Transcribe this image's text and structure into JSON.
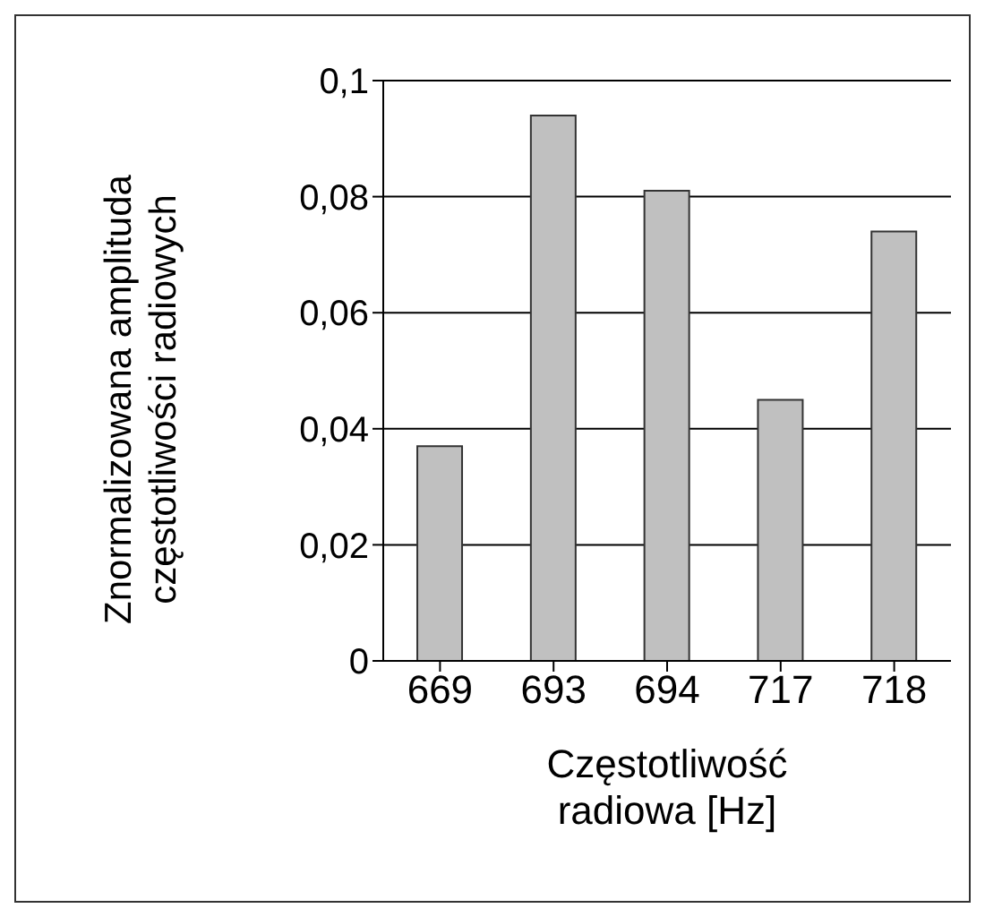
{
  "chart_data": {
    "type": "bar",
    "xlabel": "Częstotliwość\nradiowa [Hz]",
    "ylabel": "Znormalizowana amplituda\nczęstotliwości radiowych",
    "categories": [
      "669",
      "693",
      "694",
      "717",
      "718"
    ],
    "values": [
      0.037,
      0.094,
      0.081,
      0.045,
      0.074
    ],
    "color": "#c0c0c0",
    "ylim": [
      0,
      0.1
    ],
    "yticks": [
      {
        "value": 0,
        "label": "0"
      },
      {
        "value": 0.02,
        "label": "0,02"
      },
      {
        "value": 0.04,
        "label": "0,04"
      },
      {
        "value": 0.06,
        "label": "0,06"
      },
      {
        "value": 0.08,
        "label": "0,08"
      },
      {
        "value": 0.1,
        "label": "0,1"
      }
    ],
    "grid": "y"
  }
}
